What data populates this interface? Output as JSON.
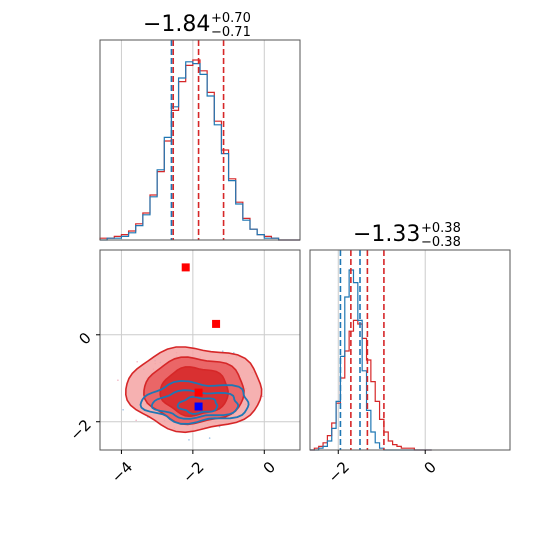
{
  "chart_data": {
    "type": "corner",
    "colors": {
      "red": "#d62728",
      "blue": "#1f77b4",
      "red_light": "#f4a3a3",
      "red_mid": "#e8595a"
    },
    "grid": true,
    "panels": [
      {
        "type": "histogram",
        "panel": "top-left",
        "title_value": "−1.84",
        "title_plus": "+0.70",
        "title_minus": "−0.71",
        "xlim": [
          -4.6,
          1.0
        ],
        "series": [
          {
            "color": "red",
            "bins_center": [
              -4.5,
              -4.3,
              -4.1,
              -3.9,
              -3.7,
              -3.5,
              -3.3,
              -3.1,
              -2.9,
              -2.7,
              -2.5,
              -2.3,
              -2.1,
              -1.9,
              -1.7,
              -1.5,
              -1.3,
              -1.1,
              -0.9,
              -0.7,
              -0.5,
              -0.3,
              -0.1,
              0.1,
              0.3,
              0.5,
              0.7,
              0.9
            ],
            "counts": [
              0.01,
              0.01,
              0.02,
              0.03,
              0.05,
              0.09,
              0.15,
              0.25,
              0.38,
              0.55,
              0.72,
              0.88,
              0.97,
              1.0,
              0.94,
              0.82,
              0.66,
              0.5,
              0.34,
              0.21,
              0.12,
              0.06,
              0.03,
              0.02,
              0.01,
              0.0,
              0.0,
              0.0
            ]
          },
          {
            "color": "blue",
            "bins_center": [
              -4.5,
              -4.3,
              -4.1,
              -3.9,
              -3.7,
              -3.5,
              -3.3,
              -3.1,
              -2.9,
              -2.7,
              -2.5,
              -2.3,
              -2.1,
              -1.9,
              -1.7,
              -1.5,
              -1.3,
              -1.1,
              -0.9,
              -0.7,
              -0.5,
              -0.3,
              -0.1,
              0.1,
              0.3,
              0.5,
              0.7,
              0.9
            ],
            "counts": [
              0.0,
              0.01,
              0.01,
              0.02,
              0.04,
              0.08,
              0.14,
              0.24,
              0.39,
              0.57,
              0.74,
              0.9,
              0.99,
              0.98,
              0.92,
              0.8,
              0.64,
              0.48,
              0.33,
              0.2,
              0.11,
              0.06,
              0.03,
              0.01,
              0.01,
              0.0,
              0.0,
              0.0
            ]
          }
        ],
        "quantile_lines": [
          {
            "color": "red",
            "x": -2.55
          },
          {
            "color": "red",
            "x": -1.84
          },
          {
            "color": "red",
            "x": -1.14
          },
          {
            "color": "blue",
            "x": -2.6
          }
        ]
      },
      {
        "type": "scatter_contour",
        "panel": "bottom-left",
        "xlim": [
          -4.6,
          1.0
        ],
        "ylim": [
          -2.65,
          1.95
        ],
        "x_ticks": [
          -4,
          -2,
          0
        ],
        "y_ticks": [
          -2,
          0
        ],
        "red_contours": [
          {
            "level": "outer",
            "cx": -1.95,
            "cy": -1.25,
            "rx": 1.9,
            "ry": 0.95
          },
          {
            "level": "mid",
            "cx": -1.95,
            "cy": -1.28,
            "rx": 1.4,
            "ry": 0.75
          },
          {
            "level": "inner",
            "cx": -1.95,
            "cy": -1.3,
            "rx": 0.95,
            "ry": 0.55
          }
        ],
        "blue_contours": [
          {
            "cx": -1.9,
            "cy": -1.55,
            "rx": 1.5,
            "ry": 0.45
          },
          {
            "cx": -1.9,
            "cy": -1.6,
            "rx": 1.2,
            "ry": 0.3
          },
          {
            "cx": -1.85,
            "cy": -1.62,
            "rx": 0.55,
            "ry": 0.18
          }
        ],
        "markers": [
          {
            "color": "red",
            "x": -2.2,
            "y": 1.55
          },
          {
            "color": "red",
            "x": -1.35,
            "y": 0.25
          },
          {
            "color": "red",
            "x": -1.84,
            "y": -1.33
          },
          {
            "color": "blue",
            "x": -1.84,
            "y": -1.65
          }
        ]
      },
      {
        "type": "histogram",
        "panel": "bottom-right",
        "title_value": "−1.33",
        "title_plus": "+0.38",
        "title_minus": "−0.38",
        "xlim": [
          -2.65,
          1.95
        ],
        "x_ticks": [
          -2,
          0
        ],
        "series": [
          {
            "color": "red",
            "bins_center": [
              -2.6,
              -2.5,
              -2.4,
              -2.3,
              -2.2,
              -2.1,
              -2.0,
              -1.9,
              -1.8,
              -1.7,
              -1.6,
              -1.5,
              -1.4,
              -1.3,
              -1.2,
              -1.1,
              -1.0,
              -0.9,
              -0.8,
              -0.7,
              -0.6,
              -0.5,
              -0.4,
              -0.3,
              -0.2,
              -0.1,
              0.0,
              0.1
            ],
            "counts": [
              0.0,
              0.01,
              0.02,
              0.04,
              0.08,
              0.15,
              0.26,
              0.4,
              0.55,
              0.66,
              0.72,
              0.7,
              0.62,
              0.5,
              0.38,
              0.27,
              0.17,
              0.1,
              0.05,
              0.03,
              0.02,
              0.01,
              0.01,
              0.01,
              0.0,
              0.0,
              0.0,
              0.0
            ]
          },
          {
            "color": "blue",
            "bins_center": [
              -2.6,
              -2.5,
              -2.4,
              -2.3,
              -2.2,
              -2.1,
              -2.0,
              -1.9,
              -1.8,
              -1.7,
              -1.6,
              -1.5,
              -1.4,
              -1.3,
              -1.2,
              -1.1,
              -1.0,
              -0.9,
              -0.8,
              -0.7,
              -0.6,
              -0.5,
              -0.4,
              -0.3,
              -0.2,
              -0.1,
              0.0,
              0.1
            ],
            "counts": [
              0.0,
              0.0,
              0.01,
              0.02,
              0.05,
              0.12,
              0.27,
              0.52,
              0.85,
              1.0,
              0.93,
              0.72,
              0.44,
              0.22,
              0.1,
              0.04,
              0.01,
              0.0,
              0.0,
              0.0,
              0.0,
              0.0,
              0.0,
              0.0,
              0.0,
              0.0,
              0.0,
              0.0
            ]
          }
        ],
        "quantile_lines": [
          {
            "color": "red",
            "x": -1.71
          },
          {
            "color": "red",
            "x": -1.33
          },
          {
            "color": "red",
            "x": -0.95
          },
          {
            "color": "blue",
            "x": -1.95
          },
          {
            "color": "blue",
            "x": -1.5
          }
        ]
      }
    ]
  }
}
